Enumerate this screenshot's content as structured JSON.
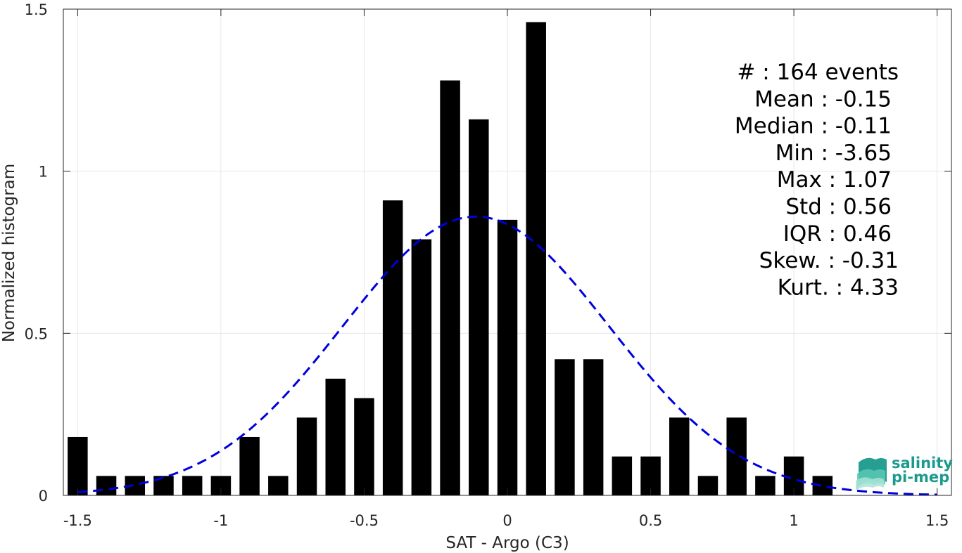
{
  "chart_data": {
    "type": "bar",
    "title": "",
    "xlabel": "SAT - Argo (C3)",
    "ylabel": "Normalized histogram",
    "xlim": [
      -1.55,
      1.55
    ],
    "ylim": [
      0,
      1.5
    ],
    "xticks": [
      -1.5,
      -1,
      -0.5,
      0,
      0.5,
      1,
      1.5
    ],
    "xtick_labels": [
      "-1.5",
      "-1",
      "-0.5",
      "0",
      "0.5",
      "1",
      "1.5"
    ],
    "yticks": [
      0,
      0.5,
      1,
      1.5
    ],
    "ytick_labels": [
      "0",
      "0.5",
      "1",
      "1.5"
    ],
    "grid": true,
    "bar_color": "#000000",
    "curve_color": "#0000dd",
    "bin_width": 0.1,
    "bars": {
      "x": [
        -1.5,
        -1.4,
        -1.3,
        -1.2,
        -1.1,
        -1.0,
        -0.9,
        -0.8,
        -0.7,
        -0.6,
        -0.5,
        -0.4,
        -0.3,
        -0.2,
        -0.1,
        0.0,
        0.1,
        0.2,
        0.3,
        0.4,
        0.5,
        0.6,
        0.7,
        0.8,
        0.9,
        1.0,
        1.1
      ],
      "values": [
        0.18,
        0.06,
        0.06,
        0.06,
        0.06,
        0.06,
        0.18,
        0.06,
        0.24,
        0.36,
        0.3,
        0.91,
        0.79,
        1.28,
        1.16,
        0.85,
        1.46,
        0.42,
        0.42,
        0.12,
        0.12,
        0.24,
        0.06,
        0.24,
        0.06,
        0.12,
        0.06
      ]
    },
    "fit_curve": {
      "style": "dashed",
      "mean": -0.11,
      "std": 0.465,
      "peak": 0.86,
      "x_range": [
        -1.5,
        1.5
      ]
    },
    "stats": [
      "#  : 164 events",
      "Mean : -0.15",
      "Median : -0.11",
      "Min : -3.65",
      "Max : 1.07",
      "Std : 0.56",
      "IQR : 0.46",
      "Skew. : -0.31",
      "Kurt. : 4.33"
    ]
  },
  "logo": {
    "line1": "salinity",
    "line2": "pi-mep",
    "color": "#1a9a8c"
  }
}
